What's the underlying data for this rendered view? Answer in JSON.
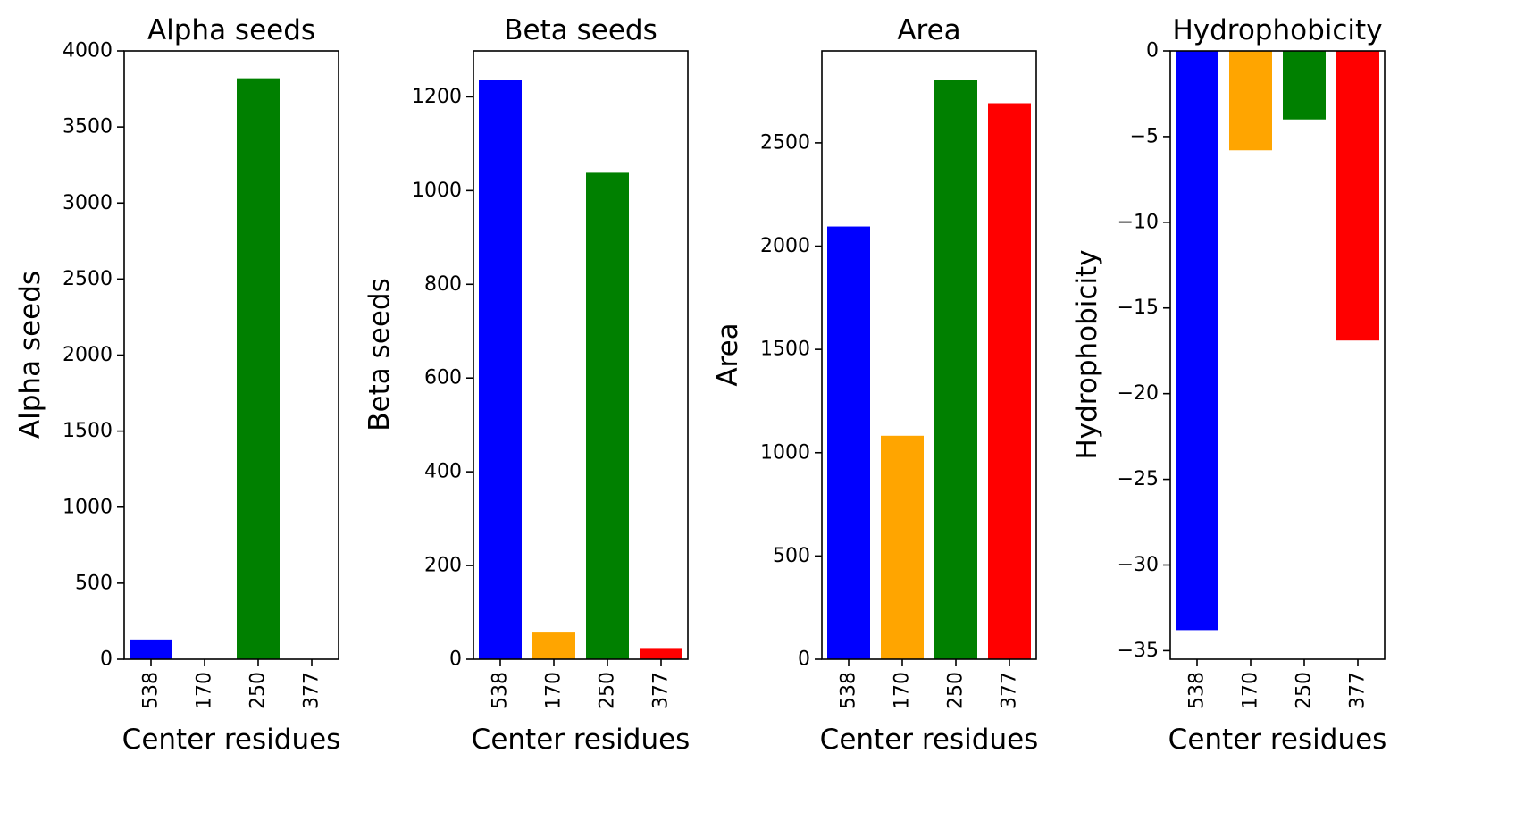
{
  "chart_data": [
    {
      "type": "bar",
      "title": "Alpha seeds",
      "xlabel": "Center residues",
      "ylabel": "Alpha seeds",
      "categories": [
        "538",
        "170",
        "250",
        "377"
      ],
      "values": [
        130,
        0,
        3820,
        0
      ],
      "colors": [
        "#0000ff",
        "#ffa500",
        "#008000",
        "#ff0000"
      ],
      "ylim": [
        0,
        4000
      ],
      "yticks": [
        0,
        500,
        1000,
        1500,
        2000,
        2500,
        3000,
        3500,
        4000
      ],
      "grid": false
    },
    {
      "type": "bar",
      "title": "Beta seeds",
      "xlabel": "Center residues",
      "ylabel": "Beta seeds",
      "categories": [
        "538",
        "170",
        "250",
        "377"
      ],
      "values": [
        1236,
        57,
        1038,
        24
      ],
      "colors": [
        "#0000ff",
        "#ffa500",
        "#008000",
        "#ff0000"
      ],
      "ylim": [
        0,
        1298
      ],
      "yticks": [
        0,
        200,
        400,
        600,
        800,
        1000,
        1200
      ],
      "grid": false
    },
    {
      "type": "bar",
      "title": "Area",
      "xlabel": "Center residues",
      "ylabel": "Area",
      "categories": [
        "538",
        "170",
        "250",
        "377"
      ],
      "values": [
        2095,
        1082,
        2805,
        2692
      ],
      "colors": [
        "#0000ff",
        "#ffa500",
        "#008000",
        "#ff0000"
      ],
      "ylim": [
        0,
        2945
      ],
      "yticks": [
        0,
        500,
        1000,
        1500,
        2000,
        2500
      ],
      "grid": false
    },
    {
      "type": "bar",
      "title": "Hydrophobicity",
      "xlabel": "Center residues",
      "ylabel": "Hydrophobicity",
      "categories": [
        "538",
        "170",
        "250",
        "377"
      ],
      "values": [
        -33.8,
        -5.8,
        -4.0,
        -16.9
      ],
      "colors": [
        "#0000ff",
        "#ffa500",
        "#008000",
        "#ff0000"
      ],
      "ylim": [
        -35.5,
        0
      ],
      "yticks": [
        0,
        -5,
        -10,
        -15,
        -20,
        -25,
        -30,
        -35
      ],
      "grid": false
    }
  ]
}
